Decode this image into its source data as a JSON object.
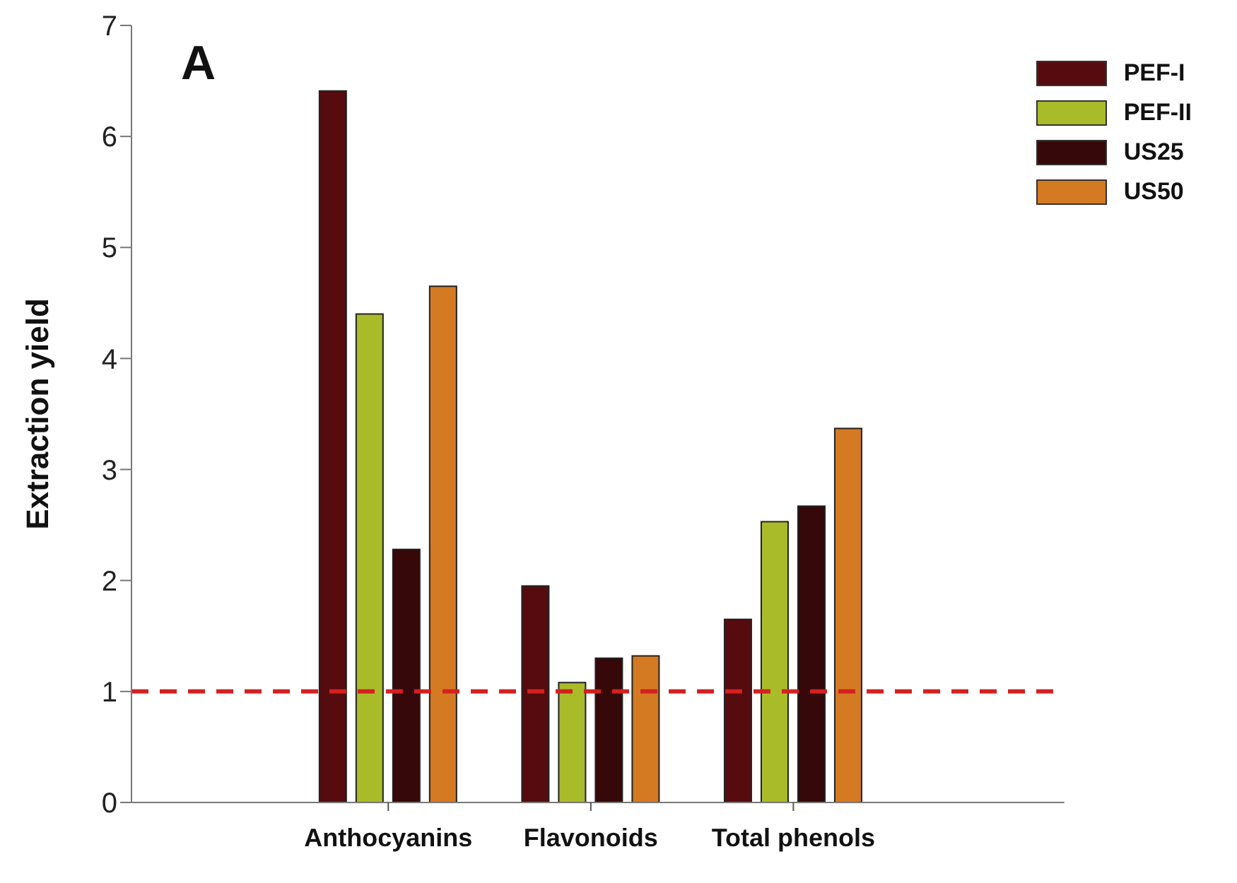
{
  "chart_data": {
    "type": "bar",
    "ylabel": "Extraction yield",
    "annotations": [
      "A"
    ],
    "categories": [
      "Anthocyanins",
      "Flavonoids",
      "Total phenols"
    ],
    "series": [
      {
        "name": "PEF-I",
        "color": "#560b0e",
        "values": [
          6.41,
          1.95,
          1.65
        ]
      },
      {
        "name": "PEF-II",
        "color": "#aabb2a",
        "values": [
          4.4,
          1.08,
          2.53
        ]
      },
      {
        "name": "US25",
        "color": "#360809",
        "values": [
          2.28,
          1.3,
          2.67
        ]
      },
      {
        "name": "US50",
        "color": "#d47a22",
        "values": [
          4.65,
          1.32,
          3.37
        ]
      }
    ],
    "ylim": [
      0,
      7
    ],
    "yticks": [
      0,
      1,
      2,
      3,
      4,
      5,
      6,
      7
    ],
    "grid": false,
    "legend": "top right",
    "ref_lines": [
      {
        "axis": "y",
        "value": 1,
        "color": "#d42020",
        "line_style": "dashed"
      }
    ]
  }
}
